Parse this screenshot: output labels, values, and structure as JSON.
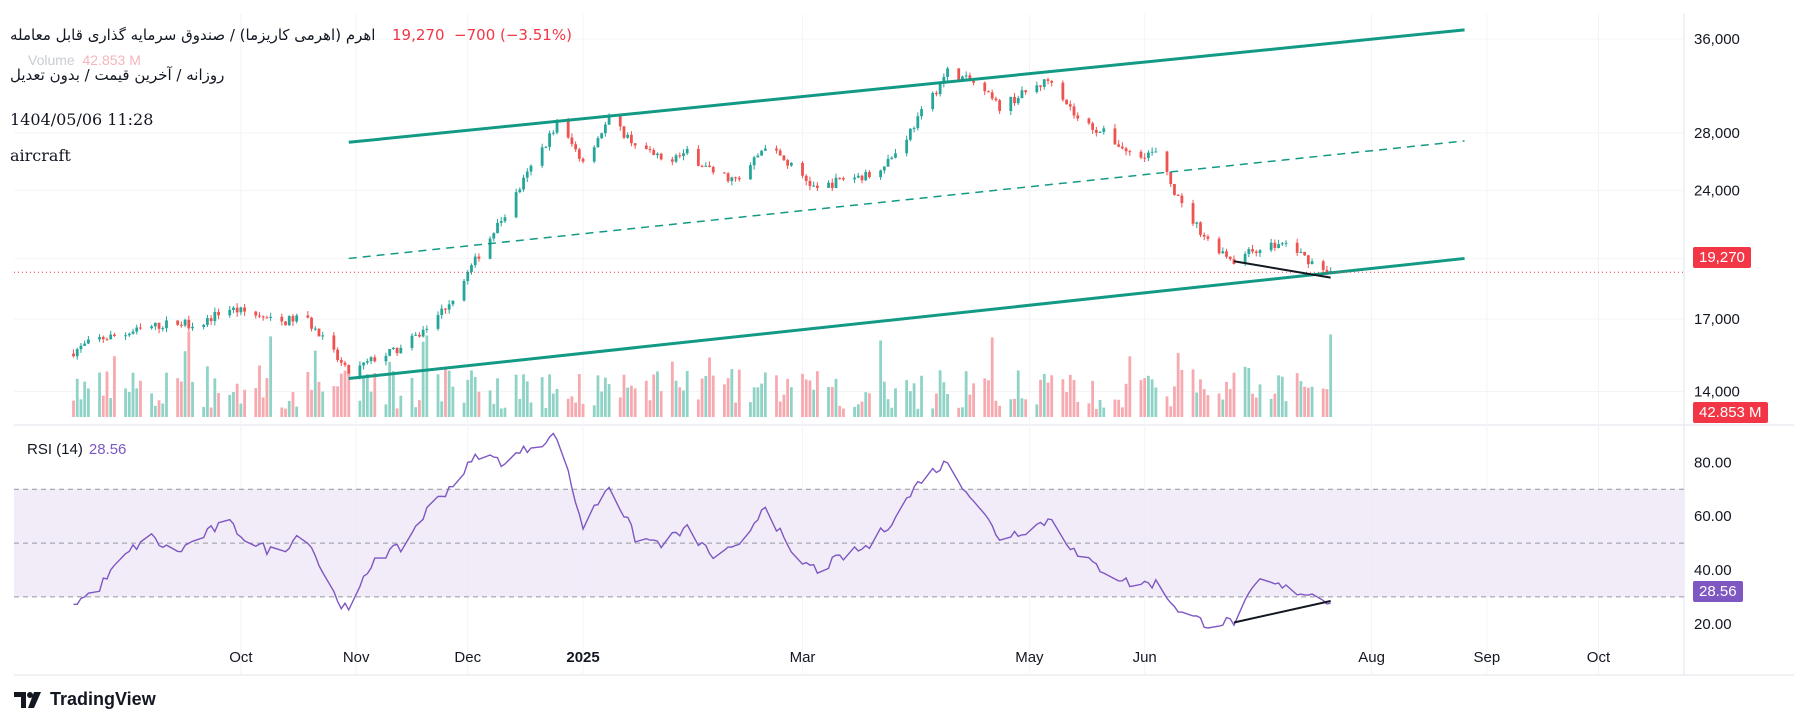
{
  "header": {
    "title": "اهرم (اهرمی کاریزما) / صندوق سرمایه گذاری قابل معامله",
    "last": "19,270",
    "change": "−700 (−3.51%)",
    "volume_label": "Volume",
    "volume_value": "42.853 M",
    "interval": "روزانه / آخرین قیمت / بدون تعدیل",
    "datetime": "1404/05/06 11:28",
    "note": "aircraft"
  },
  "rsi": {
    "label": "RSI (14)",
    "value": "28.56"
  },
  "price_tag": "19,270",
  "volume_tag": "42.853 M",
  "rsi_tag": "28.56",
  "brand": "TradingView",
  "colors": {
    "up": "#26a69a",
    "down": "#ef5350",
    "up_vol": "#8fd3c6",
    "down_vol": "#f7a9b0",
    "channel": "#139a85",
    "rsi_line": "#7e57c2",
    "rsi_band": "#ede7f6",
    "price_tag": "#f23645",
    "rsi_tag": "#7e57c2"
  },
  "chart_data": {
    "type": "candlestick",
    "interval": "daily",
    "x_labels": [
      "Oct",
      "Nov",
      "Dec",
      "2025",
      "Mar",
      "May",
      "Jun",
      "Aug",
      "Sep",
      "Oct"
    ],
    "price_axis": {
      "ticks": [
        "14,000",
        "17,000",
        "20,000",
        "24,000",
        "28,000",
        "36,000"
      ],
      "scale": "log",
      "ylim": [
        12800,
        38500
      ]
    },
    "last_price": 19270,
    "close_path": [
      {
        "date": "2024-08-16",
        "close": 15500
      },
      {
        "date": "2024-08-23",
        "close": 16100
      },
      {
        "date": "2024-08-30",
        "close": 16300
      },
      {
        "date": "2024-09-06",
        "close": 16600
      },
      {
        "date": "2024-09-13",
        "close": 16850
      },
      {
        "date": "2024-09-20",
        "close": 16750
      },
      {
        "date": "2024-09-27",
        "close": 17500
      },
      {
        "date": "2024-10-04",
        "close": 17250
      },
      {
        "date": "2024-10-11",
        "close": 16800
      },
      {
        "date": "2024-10-18",
        "close": 17150
      },
      {
        "date": "2024-10-25",
        "close": 15700
      },
      {
        "date": "2024-10-30",
        "close": 14650
      },
      {
        "date": "2024-11-06",
        "close": 15300
      },
      {
        "date": "2024-11-13",
        "close": 15700
      },
      {
        "date": "2024-11-20",
        "close": 16600
      },
      {
        "date": "2024-11-27",
        "close": 18000
      },
      {
        "date": "2024-12-04",
        "close": 20200
      },
      {
        "date": "2024-12-11",
        "close": 22500
      },
      {
        "date": "2024-12-18",
        "close": 25500
      },
      {
        "date": "2024-12-25",
        "close": 28700
      },
      {
        "date": "2025-01-01",
        "close": 26000
      },
      {
        "date": "2025-01-08",
        "close": 29000
      },
      {
        "date": "2025-01-15",
        "close": 27200
      },
      {
        "date": "2025-01-22",
        "close": 26000
      },
      {
        "date": "2025-01-29",
        "close": 26500
      },
      {
        "date": "2025-02-05",
        "close": 25200
      },
      {
        "date": "2025-02-12",
        "close": 24600
      },
      {
        "date": "2025-02-19",
        "close": 27100
      },
      {
        "date": "2025-02-26",
        "close": 25600
      },
      {
        "date": "2025-03-05",
        "close": 24000
      },
      {
        "date": "2025-03-12",
        "close": 24800
      },
      {
        "date": "2025-03-19",
        "close": 25000
      },
      {
        "date": "2025-03-26",
        "close": 26500
      },
      {
        "date": "2025-04-02",
        "close": 29500
      },
      {
        "date": "2025-04-09",
        "close": 33000
      },
      {
        "date": "2025-04-16",
        "close": 32000
      },
      {
        "date": "2025-04-23",
        "close": 30000
      },
      {
        "date": "2025-04-30",
        "close": 31200
      },
      {
        "date": "2025-05-07",
        "close": 32400
      },
      {
        "date": "2025-05-14",
        "close": 29000
      },
      {
        "date": "2025-05-21",
        "close": 28000
      },
      {
        "date": "2025-05-28",
        "close": 26500
      },
      {
        "date": "2025-06-04",
        "close": 26500
      },
      {
        "date": "2025-06-11",
        "close": 23000
      },
      {
        "date": "2025-06-18",
        "close": 21000
      },
      {
        "date": "2025-06-25",
        "close": 19900
      },
      {
        "date": "2025-07-02",
        "close": 20600
      },
      {
        "date": "2025-07-09",
        "close": 20800
      },
      {
        "date": "2025-07-16",
        "close": 19800
      },
      {
        "date": "2025-07-21",
        "close": 19270
      }
    ],
    "channel": {
      "upper": [
        {
          "date": "2024-10-30",
          "value": 27300
        },
        {
          "date": "2025-08-26",
          "value": 36900
        }
      ],
      "middle": [
        {
          "date": "2024-10-30",
          "value": 20000
        },
        {
          "date": "2025-08-26",
          "value": 27400
        }
      ],
      "lower": [
        {
          "date": "2024-10-30",
          "value": 14500
        },
        {
          "date": "2025-08-26",
          "value": 20000
        }
      ]
    },
    "volume_last": "42.853 M",
    "rsi": {
      "period": 14,
      "ticks": [
        "20.00",
        "40.00",
        "60.00",
        "80.00"
      ],
      "ylim": [
        14,
        92
      ],
      "band": [
        30,
        70
      ],
      "midline": 50,
      "last": 28.56,
      "path": [
        {
          "date": "2024-08-16",
          "v": 27
        },
        {
          "date": "2024-08-23",
          "v": 32
        },
        {
          "date": "2024-08-30",
          "v": 44
        },
        {
          "date": "2024-09-06",
          "v": 53
        },
        {
          "date": "2024-09-13",
          "v": 46
        },
        {
          "date": "2024-09-20",
          "v": 52
        },
        {
          "date": "2024-09-27",
          "v": 58
        },
        {
          "date": "2024-10-04",
          "v": 50
        },
        {
          "date": "2024-10-11",
          "v": 46
        },
        {
          "date": "2024-10-18",
          "v": 55
        },
        {
          "date": "2024-10-25",
          "v": 33
        },
        {
          "date": "2024-10-30",
          "v": 24
        },
        {
          "date": "2024-11-06",
          "v": 45
        },
        {
          "date": "2024-11-13",
          "v": 48
        },
        {
          "date": "2024-11-20",
          "v": 62
        },
        {
          "date": "2024-11-27",
          "v": 72
        },
        {
          "date": "2024-12-04",
          "v": 83
        },
        {
          "date": "2024-12-11",
          "v": 80
        },
        {
          "date": "2024-12-18",
          "v": 86
        },
        {
          "date": "2024-12-25",
          "v": 90
        },
        {
          "date": "2025-01-01",
          "v": 56
        },
        {
          "date": "2025-01-08",
          "v": 72
        },
        {
          "date": "2025-01-15",
          "v": 52
        },
        {
          "date": "2025-01-22",
          "v": 50
        },
        {
          "date": "2025-01-29",
          "v": 55
        },
        {
          "date": "2025-02-05",
          "v": 45
        },
        {
          "date": "2025-02-12",
          "v": 48
        },
        {
          "date": "2025-02-19",
          "v": 65
        },
        {
          "date": "2025-02-26",
          "v": 45
        },
        {
          "date": "2025-03-05",
          "v": 40
        },
        {
          "date": "2025-03-12",
          "v": 45
        },
        {
          "date": "2025-03-19",
          "v": 49
        },
        {
          "date": "2025-03-26",
          "v": 60
        },
        {
          "date": "2025-04-02",
          "v": 74
        },
        {
          "date": "2025-04-09",
          "v": 80
        },
        {
          "date": "2025-04-16",
          "v": 66
        },
        {
          "date": "2025-04-23",
          "v": 52
        },
        {
          "date": "2025-04-30",
          "v": 55
        },
        {
          "date": "2025-05-07",
          "v": 59
        },
        {
          "date": "2025-05-14",
          "v": 45
        },
        {
          "date": "2025-05-21",
          "v": 40
        },
        {
          "date": "2025-05-28",
          "v": 35
        },
        {
          "date": "2025-06-04",
          "v": 35
        },
        {
          "date": "2025-06-11",
          "v": 24
        },
        {
          "date": "2025-06-18",
          "v": 20
        },
        {
          "date": "2025-06-25",
          "v": 21
        },
        {
          "date": "2025-07-02",
          "v": 36
        },
        {
          "date": "2025-07-09",
          "v": 33
        },
        {
          "date": "2025-07-16",
          "v": 31
        },
        {
          "date": "2025-07-21",
          "v": 28.56
        }
      ]
    },
    "divergence": {
      "price": [
        {
          "date": "2025-06-25",
          "value": 19850
        },
        {
          "date": "2025-07-21",
          "value": 19000
        }
      ],
      "rsi": [
        {
          "date": "2025-06-25",
          "v": 20.5
        },
        {
          "date": "2025-07-21",
          "v": 28.5
        }
      ]
    }
  }
}
